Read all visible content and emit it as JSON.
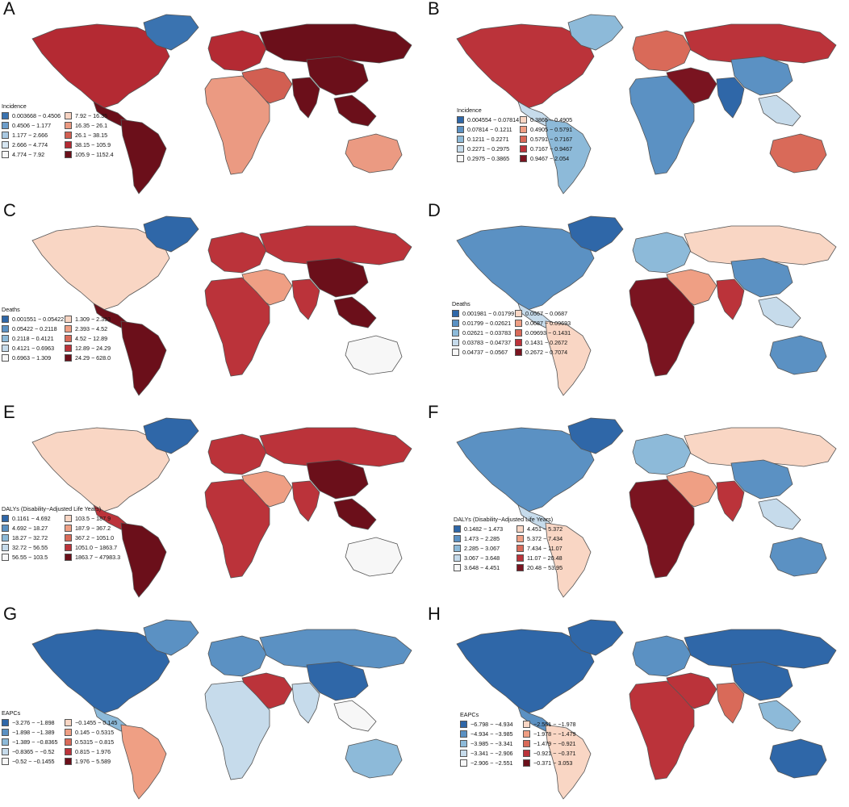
{
  "panels": [
    {
      "letter": "A",
      "legend_title": "Incidence",
      "colors": [
        "#3a73b0",
        "#6d9ecb",
        "#a9c9e2",
        "#d6e6f2",
        "#f7f7f7",
        "#f7d3c2",
        "#eb9a82",
        "#d25f52",
        "#b42a33",
        "#6b0f1a"
      ],
      "labels": [
        "0.003668 − 0.4506",
        "0.4506 − 1.177",
        "1.177 − 2.666",
        "2.666 − 4.774",
        "4.774 − 7.92",
        "7.92 − 16.35",
        "16.35 − 26.1",
        "26.1 − 38.15",
        "38.15 − 105.9",
        "105.9 − 1152.4"
      ],
      "regions": {
        "na": 8,
        "greenland": 0,
        "ca": 9,
        "sa": 9,
        "eu": 8,
        "ru": 9,
        "me": 7,
        "af": 6,
        "ind": 9,
        "ch": 9,
        "sea": 9,
        "au": 6
      }
    },
    {
      "letter": "B",
      "legend_title": "Incidence",
      "colors": [
        "#2f67a8",
        "#5b91c3",
        "#8dbad9",
        "#c6dbeb",
        "#f7f7f7",
        "#f9d6c4",
        "#ef9f84",
        "#d96a59",
        "#bb333a",
        "#7a1420"
      ],
      "labels": [
        "0.004554 − 0.07814",
        "0.07814 − 0.1211",
        "0.1211 − 0.2271",
        "0.2271 − 0.2975",
        "0.2975 − 0.3865",
        "0.3865 − 0.4905",
        "0.4905 − 0.5791",
        "0.5791 − 0.7167",
        "0.7167 − 0.9467",
        "0.9467 − 2.054"
      ],
      "regions": {
        "na": 8,
        "greenland": 2,
        "ca": 3,
        "sa": 2,
        "eu": 7,
        "ru": 8,
        "me": 9,
        "af": 1,
        "ind": 0,
        "ch": 1,
        "sea": 3,
        "au": 7
      }
    },
    {
      "letter": "C",
      "legend_title": "Deaths",
      "colors": [
        "#2f67a8",
        "#5b91c3",
        "#8dbad9",
        "#c6dbeb",
        "#f7f7f7",
        "#f9d6c4",
        "#ef9f84",
        "#d96a59",
        "#bb333a",
        "#6b0f1a"
      ],
      "labels": [
        "0.001551 − 0.05422",
        "0.05422 − 0.2118",
        "0.2118 − 0.4121",
        "0.4121 − 0.6963",
        "0.6963 − 1.309",
        "1.309 − 2.393",
        "2.393 − 4.52",
        "4.52 − 12.89",
        "12.89 − 24.29",
        "24.29 − 628.0"
      ],
      "regions": {
        "na": 5,
        "greenland": 0,
        "ca": 9,
        "sa": 9,
        "eu": 8,
        "ru": 8,
        "me": 6,
        "af": 8,
        "ind": 8,
        "ch": 9,
        "sea": 9,
        "au": 4
      }
    },
    {
      "letter": "D",
      "legend_title": "Deaths",
      "colors": [
        "#2f67a8",
        "#5b91c3",
        "#8dbad9",
        "#c6dbeb",
        "#f7f7f7",
        "#f9d6c4",
        "#ef9f84",
        "#d96a59",
        "#bb333a",
        "#7a1420"
      ],
      "labels": [
        "0.001981 − 0.01799",
        "0.01799 − 0.02621",
        "0.02621 − 0.03783",
        "0.03783 − 0.04737",
        "0.04737 − 0.0567",
        "0.0567 − 0.0687",
        "0.0687 − 0.09693",
        "0.09693 − 0.1431",
        "0.1431 − 0.2672",
        "0.2672 − 0.7074"
      ],
      "regions": {
        "na": 1,
        "greenland": 0,
        "ca": 3,
        "sa": 5,
        "eu": 2,
        "ru": 5,
        "me": 6,
        "af": 9,
        "ind": 8,
        "ch": 1,
        "sea": 3,
        "au": 1
      }
    },
    {
      "letter": "E",
      "legend_title": "DALYs (Disability−Adjusted Life Years)",
      "colors": [
        "#2f67a8",
        "#5b91c3",
        "#8dbad9",
        "#c6dbeb",
        "#f7f7f7",
        "#f9d6c4",
        "#ef9f84",
        "#d96a59",
        "#bb333a",
        "#6b0f1a"
      ],
      "labels": [
        "0.1161 − 4.692",
        "4.692 − 18.27",
        "18.27 − 32.72",
        "32.72 − 56.55",
        "56.55 − 103.5",
        "103.5 − 187.9",
        "187.9 − 367.2",
        "367.2 − 1051.0",
        "1051.0 − 1863.7",
        "1863.7 − 47983.3"
      ],
      "regions": {
        "na": 5,
        "greenland": 0,
        "ca": 8,
        "sa": 9,
        "eu": 8,
        "ru": 8,
        "me": 6,
        "af": 8,
        "ind": 8,
        "ch": 9,
        "sea": 9,
        "au": 4
      }
    },
    {
      "letter": "F",
      "legend_title": "DALYs (Disability−Adjusted Life Years)",
      "colors": [
        "#2f67a8",
        "#5b91c3",
        "#8dbad9",
        "#c6dbeb",
        "#f7f7f7",
        "#f9d6c4",
        "#ef9f84",
        "#d96a59",
        "#bb333a",
        "#7a1420"
      ],
      "labels": [
        "0.1482 − 1.473",
        "1.473 − 2.285",
        "2.285 − 3.067",
        "3.067 − 3.648",
        "3.648 − 4.451",
        "4.451 − 5.372",
        "5.372 − 7.434",
        "7.434 − 11.07",
        "11.07 − 20.48",
        "20.48 − 53.95"
      ],
      "regions": {
        "na": 1,
        "greenland": 0,
        "ca": 3,
        "sa": 5,
        "eu": 2,
        "ru": 5,
        "me": 6,
        "af": 9,
        "ind": 8,
        "ch": 1,
        "sea": 3,
        "au": 1
      }
    },
    {
      "letter": "G",
      "legend_title": "EAPCs",
      "colors": [
        "#2f67a8",
        "#5b91c3",
        "#8dbad9",
        "#c6dbeb",
        "#f7f7f7",
        "#f9d6c4",
        "#ef9f84",
        "#d96a59",
        "#bb333a",
        "#6b0f1a"
      ],
      "labels": [
        "−3.276 − −1.898",
        "−1.898 − −1.389",
        "−1.389 − −0.8365",
        "−0.8365 − −0.52",
        "−0.52 − −0.1455",
        "−0.1455 − 0.145",
        "0.145 − 0.5315",
        "0.5315 − 0.815",
        "0.815 − 1.976",
        "1.976 − 5.589"
      ],
      "regions": {
        "na": 0,
        "greenland": 1,
        "ca": 2,
        "sa": 6,
        "eu": 1,
        "ru": 1,
        "me": 8,
        "af": 3,
        "ind": 3,
        "ch": 0,
        "sea": 4,
        "au": 2
      }
    },
    {
      "letter": "H",
      "legend_title": "EAPCs",
      "colors": [
        "#2f67a8",
        "#5b91c3",
        "#8dbad9",
        "#c6dbeb",
        "#f7f7f7",
        "#f9d6c4",
        "#ef9f84",
        "#d96a59",
        "#bb333a",
        "#6b0f1a"
      ],
      "labels": [
        "−6.798 − −4.934",
        "−4.934 − −3.985",
        "−3.985 − −3.341",
        "−3.341 − −2.906",
        "−2.906 − −2.551",
        "−2.551 − −1.978",
        "−1.978 − −1.479",
        "−1.479 − −0.921",
        "−0.921 − −0.371",
        "−0.371 − 3.053"
      ],
      "regions": {
        "na": 0,
        "greenland": 0,
        "ca": 1,
        "sa": 5,
        "eu": 1,
        "ru": 0,
        "me": 8,
        "af": 8,
        "ind": 7,
        "ch": 0,
        "sea": 2,
        "au": 0
      }
    }
  ]
}
